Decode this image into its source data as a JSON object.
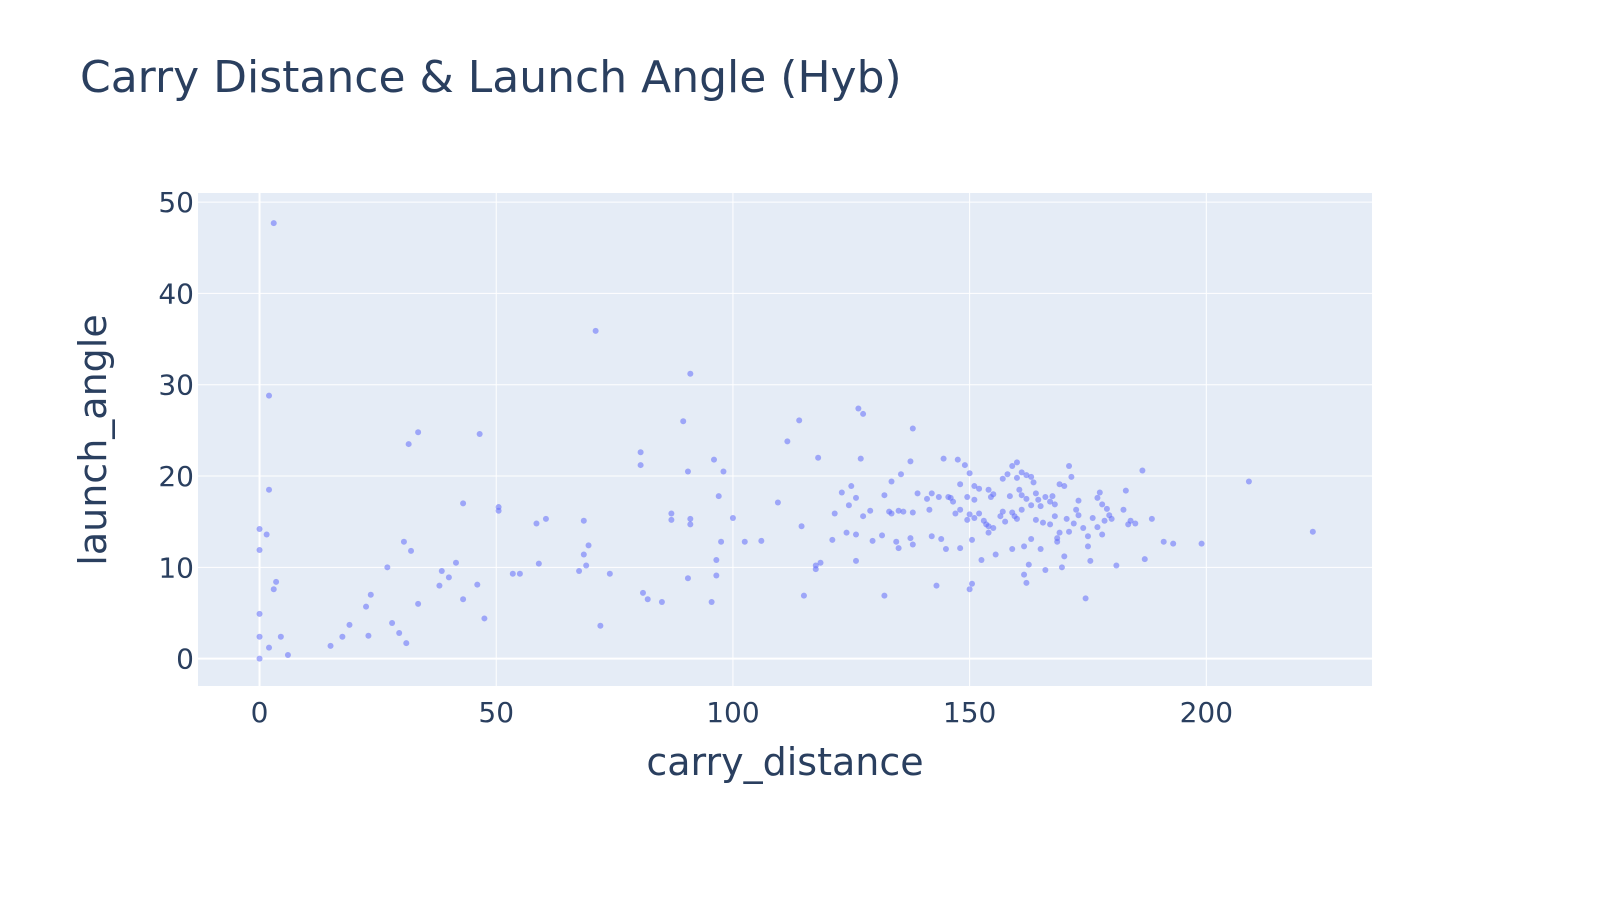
{
  "chart_data": {
    "type": "scatter",
    "title": "Carry Distance & Launch Angle (Hyb)",
    "xlabel": "carry_distance",
    "ylabel": "launch_angle",
    "xlim": [
      -13,
      235
    ],
    "ylim": [
      -3,
      51
    ],
    "xticks": [
      0,
      50,
      100,
      150,
      200
    ],
    "yticks": [
      0,
      10,
      20,
      30,
      40,
      50
    ],
    "grid": true,
    "marker_color": "#636efa",
    "plot_bg": "#e5ecf6",
    "series": [
      {
        "points": [
          [
            3,
            47.7
          ],
          [
            2,
            28.8
          ],
          [
            2,
            18.5
          ],
          [
            1.5,
            13.6
          ],
          [
            0,
            14.2
          ],
          [
            0,
            11.9
          ],
          [
            0,
            4.9
          ],
          [
            0,
            2.4
          ],
          [
            0,
            0
          ],
          [
            3.5,
            8.4
          ],
          [
            3,
            7.6
          ],
          [
            4.5,
            2.4
          ],
          [
            2,
            1.2
          ],
          [
            6,
            0.4
          ],
          [
            15,
            1.4
          ],
          [
            17.5,
            2.4
          ],
          [
            19,
            3.7
          ],
          [
            22.5,
            5.7
          ],
          [
            23.5,
            7.0
          ],
          [
            23,
            2.5
          ],
          [
            27,
            10.0
          ],
          [
            28,
            3.9
          ],
          [
            29.5,
            2.8
          ],
          [
            31,
            1.7
          ],
          [
            30.5,
            12.8
          ],
          [
            31.5,
            23.5
          ],
          [
            32,
            11.8
          ],
          [
            33.5,
            24.8
          ],
          [
            33.5,
            6.0
          ],
          [
            38,
            8.0
          ],
          [
            38.5,
            9.6
          ],
          [
            40,
            8.9
          ],
          [
            41.5,
            10.5
          ],
          [
            43,
            17.0
          ],
          [
            43,
            6.5
          ],
          [
            46,
            8.1
          ],
          [
            46.5,
            24.6
          ],
          [
            47.5,
            4.4
          ],
          [
            50.5,
            16.6
          ],
          [
            50.5,
            16.2
          ],
          [
            53.5,
            9.3
          ],
          [
            55,
            9.3
          ],
          [
            58.5,
            14.8
          ],
          [
            59,
            10.4
          ],
          [
            60.5,
            15.3
          ],
          [
            67.5,
            9.6
          ],
          [
            68.5,
            15.1
          ],
          [
            68.5,
            11.4
          ],
          [
            69,
            10.2
          ],
          [
            69.5,
            12.4
          ],
          [
            71,
            35.9
          ],
          [
            72,
            3.6
          ],
          [
            74,
            9.3
          ],
          [
            80.5,
            22.6
          ],
          [
            80.5,
            21.2
          ],
          [
            81,
            7.2
          ],
          [
            82,
            6.5
          ],
          [
            85,
            6.2
          ],
          [
            87,
            15.9
          ],
          [
            87,
            15.2
          ],
          [
            89.5,
            26.0
          ],
          [
            90.5,
            20.5
          ],
          [
            90.5,
            8.8
          ],
          [
            91,
            31.2
          ],
          [
            91,
            15.3
          ],
          [
            91,
            14.7
          ],
          [
            95.5,
            6.2
          ],
          [
            96,
            21.8
          ],
          [
            96.5,
            10.8
          ],
          [
            96.5,
            9.1
          ],
          [
            97,
            17.8
          ],
          [
            97.5,
            12.8
          ],
          [
            98,
            20.5
          ],
          [
            100,
            15.4
          ],
          [
            102.5,
            12.8
          ],
          [
            106,
            12.9
          ],
          [
            109.5,
            17.1
          ],
          [
            111.5,
            23.8
          ],
          [
            114,
            26.1
          ],
          [
            114.5,
            14.5
          ],
          [
            115,
            6.9
          ],
          [
            117.5,
            10.2
          ],
          [
            117.5,
            9.8
          ],
          [
            118,
            22.0
          ],
          [
            118.5,
            10.5
          ],
          [
            121,
            13.0
          ],
          [
            121.5,
            15.9
          ],
          [
            123,
            18.2
          ],
          [
            124,
            13.8
          ],
          [
            124.5,
            16.8
          ],
          [
            125,
            18.9
          ],
          [
            126,
            17.6
          ],
          [
            126,
            13.6
          ],
          [
            126,
            10.7
          ],
          [
            126.5,
            27.4
          ],
          [
            127,
            21.9
          ],
          [
            127.5,
            26.8
          ],
          [
            127.5,
            15.6
          ],
          [
            129,
            16.2
          ],
          [
            129.5,
            12.9
          ],
          [
            131.5,
            13.5
          ],
          [
            132,
            17.9
          ],
          [
            132,
            6.9
          ],
          [
            133,
            16.1
          ],
          [
            133.5,
            19.4
          ],
          [
            133.5,
            15.9
          ],
          [
            134.5,
            12.8
          ],
          [
            135,
            16.2
          ],
          [
            135,
            12.1
          ],
          [
            135.5,
            20.2
          ],
          [
            136,
            16.1
          ],
          [
            137.5,
            21.6
          ],
          [
            137.5,
            13.2
          ],
          [
            138,
            25.2
          ],
          [
            138,
            16.0
          ],
          [
            138,
            12.5
          ],
          [
            139,
            18.1
          ],
          [
            141,
            17.5
          ],
          [
            141.5,
            16.3
          ],
          [
            142,
            18.1
          ],
          [
            142,
            13.4
          ],
          [
            143,
            8.0
          ],
          [
            143.5,
            17.7
          ],
          [
            144,
            13.1
          ],
          [
            144.5,
            21.9
          ],
          [
            145,
            12.0
          ],
          [
            145.5,
            17.7
          ],
          [
            146,
            17.6
          ],
          [
            146.5,
            17.2
          ],
          [
            147,
            15.9
          ],
          [
            147.5,
            21.8
          ],
          [
            148,
            19.1
          ],
          [
            148,
            16.3
          ],
          [
            148,
            12.1
          ],
          [
            149,
            21.2
          ],
          [
            149.5,
            17.7
          ],
          [
            149.5,
            15.2
          ],
          [
            150,
            20.3
          ],
          [
            150,
            15.8
          ],
          [
            150,
            7.6
          ],
          [
            150.5,
            8.2
          ],
          [
            150.5,
            13.0
          ],
          [
            151,
            18.9
          ],
          [
            151,
            17.4
          ],
          [
            151,
            15.4
          ],
          [
            152,
            18.6
          ],
          [
            152,
            15.9
          ],
          [
            152.5,
            10.8
          ],
          [
            153,
            15.1
          ],
          [
            153.5,
            14.7
          ],
          [
            154,
            18.5
          ],
          [
            154,
            14.5
          ],
          [
            154,
            13.8
          ],
          [
            154.5,
            17.7
          ],
          [
            155,
            18.0
          ],
          [
            155,
            14.3
          ],
          [
            155.5,
            11.4
          ],
          [
            156.5,
            15.6
          ],
          [
            157,
            19.7
          ],
          [
            157,
            16.1
          ],
          [
            157.5,
            15.0
          ],
          [
            158,
            20.2
          ],
          [
            158.5,
            17.8
          ],
          [
            159,
            21.1
          ],
          [
            159,
            16.0
          ],
          [
            159,
            12.0
          ],
          [
            159.5,
            15.6
          ],
          [
            160,
            21.5
          ],
          [
            160,
            19.8
          ],
          [
            160,
            15.3
          ],
          [
            160.5,
            18.5
          ],
          [
            161,
            20.4
          ],
          [
            161,
            17.9
          ],
          [
            161,
            16.3
          ],
          [
            161.5,
            12.3
          ],
          [
            161.5,
            9.2
          ],
          [
            162,
            20.1
          ],
          [
            162,
            17.5
          ],
          [
            162,
            8.3
          ],
          [
            162.5,
            10.3
          ],
          [
            163,
            19.9
          ],
          [
            163,
            16.8
          ],
          [
            163,
            13.1
          ],
          [
            163.5,
            19.3
          ],
          [
            164,
            18.1
          ],
          [
            164,
            15.2
          ],
          [
            164.5,
            17.4
          ],
          [
            165,
            16.7
          ],
          [
            165,
            12.0
          ],
          [
            165.5,
            14.9
          ],
          [
            166,
            17.7
          ],
          [
            166,
            9.7
          ],
          [
            167,
            17.2
          ],
          [
            167,
            14.7
          ],
          [
            167.5,
            17.8
          ],
          [
            168,
            16.9
          ],
          [
            168,
            15.6
          ],
          [
            168.5,
            13.2
          ],
          [
            168.5,
            12.8
          ],
          [
            169,
            19.1
          ],
          [
            169,
            13.8
          ],
          [
            169.5,
            10.0
          ],
          [
            170,
            18.9
          ],
          [
            170,
            11.2
          ],
          [
            170.5,
            15.3
          ],
          [
            171,
            21.1
          ],
          [
            171,
            13.9
          ],
          [
            171.5,
            19.9
          ],
          [
            172,
            14.8
          ],
          [
            172.5,
            16.3
          ],
          [
            173,
            17.3
          ],
          [
            173,
            15.7
          ],
          [
            174,
            14.3
          ],
          [
            174.5,
            6.6
          ],
          [
            175,
            13.4
          ],
          [
            175,
            12.3
          ],
          [
            175.5,
            10.7
          ],
          [
            176,
            15.4
          ],
          [
            177,
            17.6
          ],
          [
            177,
            14.4
          ],
          [
            177.5,
            18.2
          ],
          [
            178,
            16.9
          ],
          [
            178,
            13.6
          ],
          [
            178.5,
            15.1
          ],
          [
            179,
            16.4
          ],
          [
            179.5,
            15.7
          ],
          [
            180,
            15.3
          ],
          [
            181,
            10.2
          ],
          [
            182.5,
            16.3
          ],
          [
            183,
            18.4
          ],
          [
            183.5,
            14.7
          ],
          [
            184,
            15.1
          ],
          [
            185,
            14.8
          ],
          [
            186.5,
            20.6
          ],
          [
            187,
            10.9
          ],
          [
            188.5,
            15.3
          ],
          [
            191,
            12.8
          ],
          [
            193,
            12.6
          ],
          [
            199,
            12.6
          ],
          [
            209,
            19.4
          ],
          [
            222.5,
            13.9
          ]
        ]
      }
    ]
  }
}
